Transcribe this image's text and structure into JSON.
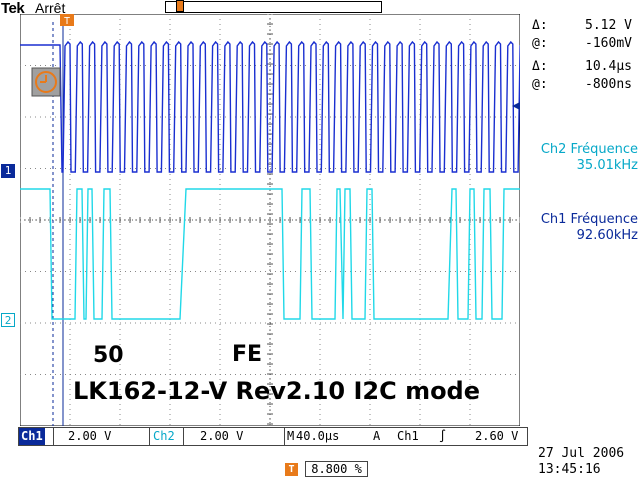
{
  "header": {
    "brand": "Tek",
    "state": "Arrêt"
  },
  "cursors": {
    "volt_delta_symbol": "Δ:",
    "volt_delta": "5.12 V",
    "volt_at_symbol": "@:",
    "volt_at": "-160mV",
    "time_delta_symbol": "Δ:",
    "time_delta": "10.4µs",
    "time_at_symbol": "@:",
    "time_at": "-800ns"
  },
  "measurements": {
    "ch2_label": "Ch2 Fréquence",
    "ch2_value": "35.01kHz",
    "ch1_label": "Ch1 Fréquence",
    "ch1_value": "92.60kHz"
  },
  "markers": {
    "ch1": "1",
    "ch2": "2"
  },
  "annotations": {
    "left_value": "50",
    "right_value": "FE",
    "title": "LK162-12-V Rev2.10 I2C mode"
  },
  "status_bar": {
    "ch1_tag": "Ch1",
    "ch1_scale": "2.00 V",
    "ch2_tag": "Ch2",
    "ch2_scale": "2.00 V",
    "timebase_tag": "M",
    "timebase": "40.0µs",
    "trigger_mode": "A",
    "trigger_source": "Ch1",
    "trigger_slope": "∫",
    "trigger_level": "2.60 V"
  },
  "timestamp": {
    "date": "27 Jul  2006",
    "time": "13:45:16"
  },
  "trigger_position": {
    "icon": "T",
    "value": "8.800 %"
  },
  "colors": {
    "ch1": "#0a2a9a",
    "ch2": "#06a8c8",
    "accent": "#e87a1a"
  }
}
